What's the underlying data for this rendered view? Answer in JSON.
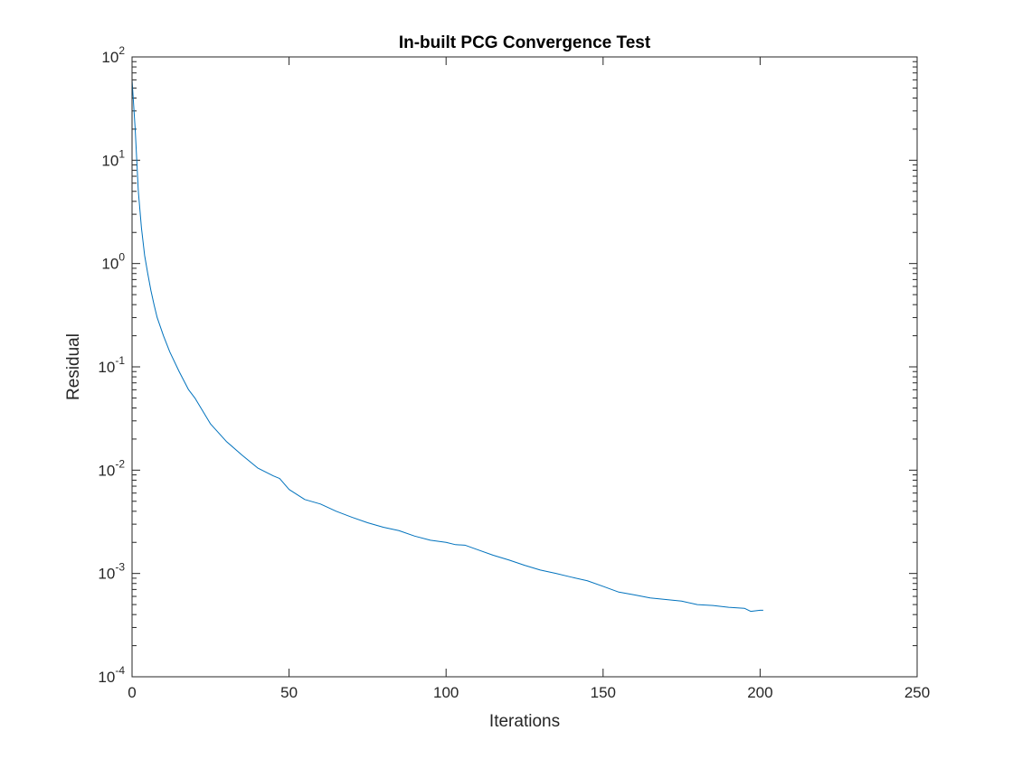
{
  "chart_data": {
    "type": "line",
    "title": "In-built PCG Convergence Test",
    "xlabel": "Iterations",
    "ylabel": "Residual",
    "xlim": [
      0,
      250
    ],
    "ylim": [
      0.0001,
      100
    ],
    "yscale": "log",
    "grid": false,
    "box": true,
    "x_ticks": [
      0,
      50,
      100,
      150,
      200,
      250
    ],
    "x_tick_labels": [
      "0",
      "50",
      "100",
      "150",
      "200",
      "250"
    ],
    "y_ticks": [
      0.0001,
      0.001,
      0.01,
      0.1,
      1,
      10,
      100
    ],
    "y_tick_labels": [
      {
        "base": "10",
        "exp": "-4"
      },
      {
        "base": "10",
        "exp": "-3"
      },
      {
        "base": "10",
        "exp": "-2"
      },
      {
        "base": "10",
        "exp": "-1"
      },
      {
        "base": "10",
        "exp": "0"
      },
      {
        "base": "10",
        "exp": "1"
      },
      {
        "base": "10",
        "exp": "2"
      }
    ],
    "series": [
      {
        "color": "#0072BD",
        "x": [
          0,
          1,
          2,
          3,
          4,
          5,
          6,
          7,
          8,
          10,
          12,
          15,
          18,
          20,
          25,
          30,
          35,
          40,
          45,
          47,
          50,
          55,
          60,
          65,
          70,
          75,
          80,
          85,
          90,
          95,
          100,
          103,
          106,
          110,
          115,
          120,
          125,
          130,
          135,
          140,
          145,
          150,
          155,
          160,
          165,
          170,
          175,
          180,
          185,
          190,
          195,
          197,
          200,
          201
        ],
        "y": [
          60,
          20,
          5,
          2.2,
          1.2,
          0.8,
          0.55,
          0.4,
          0.3,
          0.2,
          0.14,
          0.09,
          0.06,
          0.05,
          0.028,
          0.019,
          0.014,
          0.0105,
          0.0088,
          0.0083,
          0.0065,
          0.0052,
          0.0047,
          0.004,
          0.0035,
          0.0031,
          0.0028,
          0.0026,
          0.0023,
          0.0021,
          0.002,
          0.0019,
          0.00188,
          0.0017,
          0.0015,
          0.00135,
          0.0012,
          0.00108,
          0.001,
          0.00092,
          0.00085,
          0.00075,
          0.00066,
          0.00062,
          0.00058,
          0.00056,
          0.00054,
          0.0005,
          0.00049,
          0.00047,
          0.00046,
          0.00043,
          0.00044,
          0.00044
        ]
      }
    ]
  }
}
